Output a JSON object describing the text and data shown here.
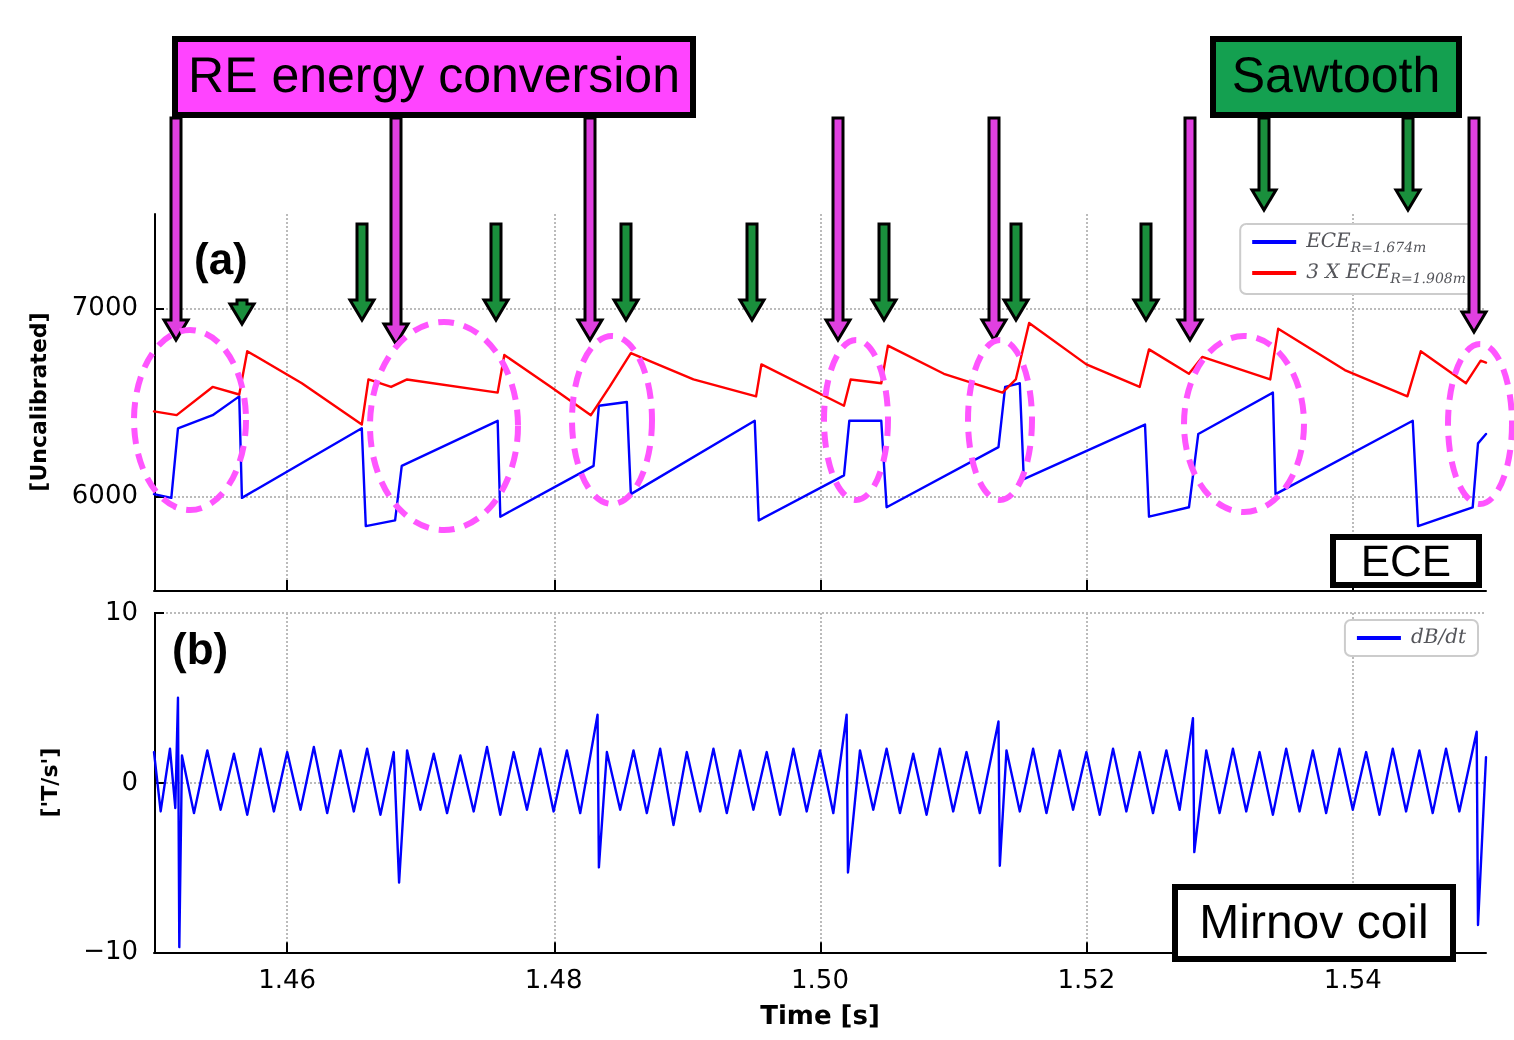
{
  "chart_data": [
    {
      "type": "line",
      "ylabel": "[Uncalibrated]",
      "xlim": [
        1.45,
        1.55
      ],
      "xticks": [
        1.46,
        1.48,
        1.5,
        1.52,
        1.54
      ],
      "ylim": [
        5500,
        7500
      ],
      "yticks": [
        6000,
        7000
      ],
      "tick_labels": "y",
      "grid": true,
      "legend": "top right",
      "marker": "none",
      "line_style": "solid",
      "annotations": [
        "(a)",
        "RE energy conversion",
        "Sawtooth",
        "ECE"
      ],
      "series": [
        {
          "name": "ECE$_{R=1.674m}$",
          "color": "#0000ff",
          "x": [
            1.45,
            1.4513,
            1.4518,
            1.4544,
            1.4564,
            1.4566,
            1.4656,
            1.4659,
            1.4681,
            1.4686,
            1.4758,
            1.476,
            1.483,
            1.4834,
            1.4855,
            1.4858,
            1.4951,
            1.4954,
            1.5018,
            1.5022,
            1.5046,
            1.505,
            1.5134,
            1.5139,
            1.515,
            1.5153,
            1.5244,
            1.5247,
            1.5277,
            1.5284,
            1.534,
            1.5342,
            1.5445,
            1.5449,
            1.549,
            1.5494,
            1.55
          ],
          "values": [
            6010,
            5990,
            6360,
            6430,
            6530,
            5990,
            6360,
            5840,
            5870,
            6160,
            6400,
            5890,
            6160,
            6480,
            6500,
            6010,
            6400,
            5870,
            6110,
            6400,
            6400,
            5940,
            6260,
            6580,
            6600,
            6090,
            6380,
            5890,
            5940,
            6330,
            6550,
            6010,
            6400,
            5840,
            5940,
            6280,
            6330
          ]
        },
        {
          "name": "3 X ECE$_{R=1.908m}$",
          "color": "#ff0000",
          "x": [
            1.45,
            1.4517,
            1.4544,
            1.4564,
            1.457,
            1.4611,
            1.4656,
            1.4661,
            1.4678,
            1.469,
            1.4758,
            1.4763,
            1.4798,
            1.4828,
            1.4842,
            1.4858,
            1.4905,
            1.4952,
            1.4956,
            1.5018,
            1.5023,
            1.5046,
            1.5051,
            1.5093,
            1.5137,
            1.5147,
            1.5157,
            1.52,
            1.524,
            1.5247,
            1.5277,
            1.5287,
            1.5338,
            1.5344,
            1.5394,
            1.5441,
            1.5451,
            1.5485,
            1.5496,
            1.55
          ],
          "values": [
            6450,
            6430,
            6580,
            6540,
            6770,
            6600,
            6380,
            6620,
            6580,
            6620,
            6550,
            6750,
            6580,
            6430,
            6580,
            6760,
            6620,
            6530,
            6700,
            6480,
            6620,
            6600,
            6800,
            6650,
            6550,
            6620,
            6920,
            6700,
            6580,
            6780,
            6650,
            6740,
            6620,
            6890,
            6670,
            6530,
            6770,
            6600,
            6720,
            6710
          ]
        }
      ]
    },
    {
      "type": "line",
      "xlabel": "Time [s]",
      "ylabel": "['T/s']",
      "xlim": [
        1.45,
        1.55
      ],
      "xticks": [
        1.46,
        1.48,
        {
          "value": 1.5,
          "label": "1.50"
        },
        1.52,
        1.54
      ],
      "ylim": [
        -10,
        10
      ],
      "yticks": [
        {
          "value": -10,
          "label": "−10"
        },
        0,
        10
      ],
      "grid": true,
      "legend": "top right",
      "marker": "none",
      "line_style": "solid",
      "annotations": [
        "(b)",
        "Mirnov coil"
      ],
      "series": [
        {
          "name": "dB/dt",
          "color": "#0000ff",
          "x": [
            1.45,
            1.4505,
            1.4512,
            1.4516,
            1.4518,
            1.4519,
            1.4521,
            1.453,
            1.454,
            1.455,
            1.456,
            1.457,
            1.458,
            1.459,
            1.46,
            1.461,
            1.462,
            1.463,
            1.464,
            1.465,
            1.466,
            1.467,
            1.468,
            1.4684,
            1.469,
            1.47,
            1.471,
            1.472,
            1.473,
            1.474,
            1.475,
            1.476,
            1.477,
            1.478,
            1.479,
            1.48,
            1.481,
            1.482,
            1.4833,
            1.4834,
            1.484,
            1.485,
            1.486,
            1.487,
            1.488,
            1.489,
            1.49,
            1.491,
            1.492,
            1.493,
            1.494,
            1.495,
            1.496,
            1.497,
            1.498,
            1.499,
            1.5,
            1.501,
            1.502,
            1.5021,
            1.503,
            1.504,
            1.505,
            1.506,
            1.507,
            1.508,
            1.509,
            1.51,
            1.511,
            1.512,
            1.5134,
            1.5135,
            1.514,
            1.515,
            1.516,
            1.517,
            1.518,
            1.519,
            1.52,
            1.521,
            1.522,
            1.523,
            1.524,
            1.525,
            1.526,
            1.527,
            1.528,
            1.5281,
            1.529,
            1.53,
            1.531,
            1.532,
            1.533,
            1.534,
            1.535,
            1.536,
            1.537,
            1.538,
            1.539,
            1.54,
            1.541,
            1.542,
            1.543,
            1.544,
            1.545,
            1.546,
            1.547,
            1.548,
            1.5493,
            1.5494,
            1.55
          ],
          "values": [
            1.8,
            -1.7,
            2.0,
            -1.5,
            5.0,
            -9.7,
            1.6,
            -1.8,
            1.9,
            -1.6,
            1.7,
            -1.9,
            2.0,
            -1.7,
            1.8,
            -1.6,
            2.1,
            -1.8,
            1.9,
            -1.7,
            2.0,
            -1.9,
            1.8,
            -5.9,
            1.9,
            -1.6,
            1.7,
            -1.8,
            1.6,
            -1.7,
            2.1,
            -1.9,
            1.8,
            -1.6,
            2.0,
            -1.7,
            1.9,
            -1.8,
            4.0,
            -5.0,
            1.8,
            -1.6,
            1.9,
            -1.8,
            2.0,
            -2.5,
            1.8,
            -1.7,
            2.0,
            -1.8,
            1.9,
            -1.6,
            1.8,
            -1.9,
            2.0,
            -1.7,
            1.9,
            -1.8,
            4.0,
            -5.3,
            1.9,
            -1.6,
            2.0,
            -1.8,
            1.7,
            -1.9,
            2.0,
            -1.7,
            1.8,
            -1.8,
            3.6,
            -4.9,
            1.9,
            -1.7,
            2.0,
            -1.8,
            1.9,
            -1.6,
            1.8,
            -1.9,
            2.0,
            -1.7,
            1.8,
            -1.8,
            1.9,
            -1.6,
            3.8,
            -4.1,
            1.9,
            -1.8,
            2.0,
            -1.7,
            1.8,
            -1.9,
            2.0,
            -1.7,
            1.9,
            -1.8,
            2.0,
            -1.6,
            1.8,
            -1.9,
            2.0,
            -1.7,
            1.9,
            -1.8,
            2.0,
            -1.7,
            3.0,
            -8.4,
            1.5
          ]
        }
      ]
    }
  ]
}
